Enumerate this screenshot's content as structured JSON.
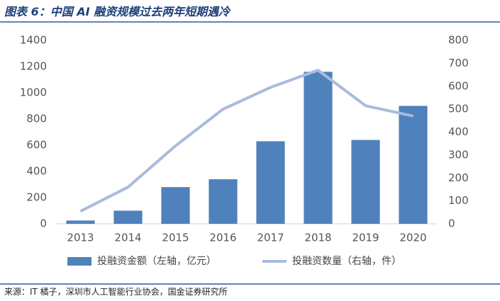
{
  "chart_data": {
    "type": "bar",
    "title": "图表 6：中国 AI 融资规模过去两年短期遇冷",
    "source": "来源：IT 橘子，深圳市人工智能行业协会，国金证券研究所",
    "categories": [
      "2013",
      "2014",
      "2015",
      "2016",
      "2017",
      "2018",
      "2019",
      "2020"
    ],
    "series": [
      {
        "name": "投融资金额（左轴，亿元）",
        "type": "bar",
        "color": "#4f81bd",
        "values": [
          25,
          100,
          280,
          340,
          630,
          1160,
          640,
          900
        ]
      },
      {
        "name": "投融资数量（右轴，件）",
        "type": "line",
        "axis": "y2",
        "color": "#a9bbdd",
        "values": [
          55,
          160,
          340,
          500,
          595,
          670,
          515,
          470
        ]
      }
    ],
    "ylim": [
      0,
      1400
    ],
    "yticks": [
      0,
      200,
      400,
      600,
      800,
      1000,
      1200,
      1400
    ],
    "y2lim": [
      0,
      800
    ],
    "y2ticks": [
      0,
      100,
      200,
      300,
      400,
      500,
      600,
      700,
      800
    ],
    "grid": false,
    "legend": "bottom"
  }
}
